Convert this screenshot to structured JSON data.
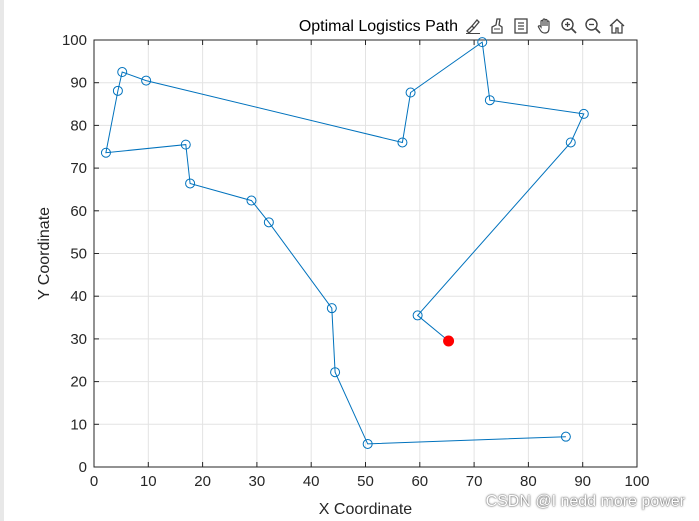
{
  "chart_data": {
    "type": "line",
    "title": "Optimal Logistics Path",
    "xlabel": "X Coordinate",
    "ylabel": "Y Coordinate",
    "xlim": [
      0,
      100
    ],
    "ylim": [
      0,
      100
    ],
    "xticks": [
      0,
      10,
      20,
      30,
      40,
      50,
      60,
      70,
      80,
      90,
      100
    ],
    "yticks": [
      0,
      10,
      20,
      30,
      40,
      50,
      60,
      70,
      80,
      90,
      100
    ],
    "grid": true,
    "line_color": "#0072bd",
    "start_marker_color": "#ff0000",
    "series": [
      {
        "x": [
          65.3,
          59.6,
          87.8,
          90.2,
          72.9,
          71.5,
          58.3,
          56.8,
          9.6,
          5.2,
          4.4,
          2.2,
          16.9,
          17.7,
          29.0,
          32.2,
          43.8,
          44.4,
          50.4,
          86.9
        ],
        "y": [
          29.5,
          35.5,
          76.0,
          82.7,
          85.9,
          99.5,
          87.7,
          76.0,
          90.5,
          92.5,
          88.1,
          73.6,
          75.5,
          66.4,
          62.4,
          57.3,
          37.2,
          22.2,
          5.4,
          7.1
        ]
      }
    ],
    "start": {
      "x": 65.3,
      "y": 29.5
    }
  },
  "toolbar": {
    "icons": [
      "brush-icon",
      "erase-icon",
      "legend-icon",
      "pan-hand-icon",
      "zoom-in-icon",
      "zoom-out-icon",
      "home-icon"
    ]
  },
  "watermark": "CSDN @I nedd more power"
}
